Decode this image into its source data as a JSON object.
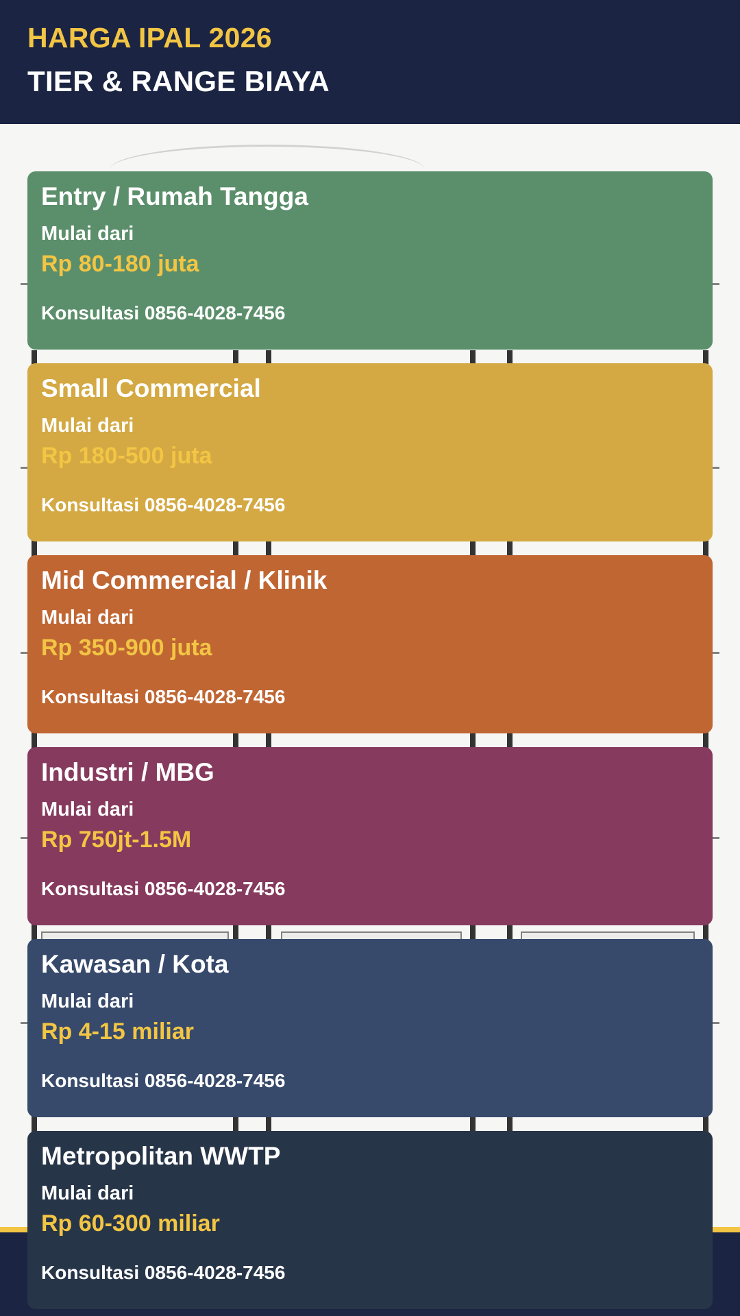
{
  "header": {
    "title": "HARGA IPAL 2026",
    "subtitle": "TIER & RANGE BIAYA"
  },
  "colors": {
    "header_bg": "#1b2442",
    "accent_yellow": "#f2c544"
  },
  "tiers": [
    {
      "name": "Entry / Rumah Tangga",
      "from_label": "Mulai dari",
      "price": "Rp 80-180 juta",
      "cta": "Konsultasi 0856-4028-7456",
      "color": "#5b8f6b"
    },
    {
      "name": "Small Commercial",
      "from_label": "Mulai dari",
      "price": "Rp 180-500 juta",
      "cta": "Konsultasi 0856-4028-7456",
      "color": "#d4a943"
    },
    {
      "name": "Mid Commercial / Klinik",
      "from_label": "Mulai dari",
      "price": "Rp 350-900 juta",
      "cta": "Konsultasi 0856-4028-7456",
      "color": "#c06633"
    },
    {
      "name": "Industri / MBG",
      "from_label": "Mulai dari",
      "price": "Rp 750jt-1.5M",
      "cta": "Konsultasi 0856-4028-7456",
      "color": "#863a5d"
    },
    {
      "name": "Kawasan / Kota",
      "from_label": "Mulai dari",
      "price": "Rp 4-15 miliar",
      "cta": "Konsultasi 0856-4028-7456",
      "color": "#374a6b"
    },
    {
      "name": "Metropolitan WWTP",
      "from_label": "Mulai dari",
      "price": "Rp 60-300 miliar",
      "cta": "Konsultasi 0856-4028-7456",
      "color": "#273548"
    }
  ]
}
